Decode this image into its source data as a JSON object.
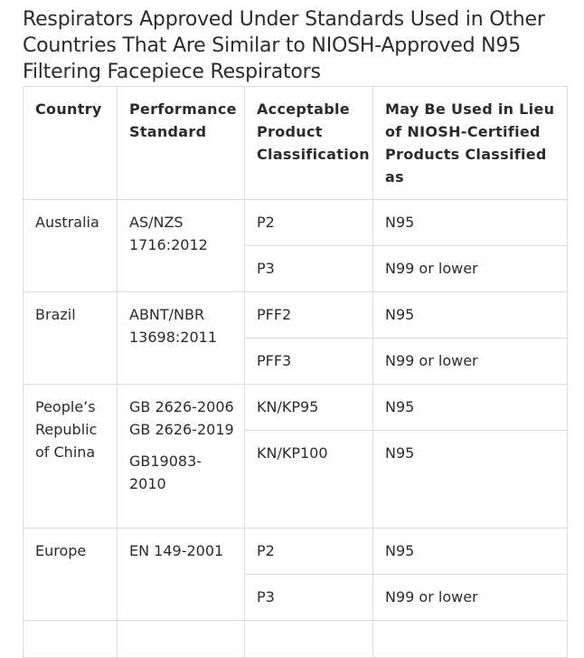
{
  "title": "Respirators Approved Under Standards Used in Other Countries That Are Similar to NIOSH-Approved N95 Filtering Facepiece Respirators",
  "table": {
    "headers": [
      "Country",
      "Performance Standard",
      "Acceptable Product Classification",
      "May Be Used in Lieu of NIOSH-Certified Products Classified as"
    ],
    "groups": [
      {
        "country": "Australia",
        "standards": [
          "AS/NZS 1716:2012"
        ],
        "rows": [
          {
            "classification": "P2",
            "equivalent": "N95"
          },
          {
            "classification": "P3",
            "equivalent": "N99 or lower"
          }
        ]
      },
      {
        "country": "Brazil",
        "standards": [
          "ABNT/NBR 13698:2011"
        ],
        "rows": [
          {
            "classification": "PFF2",
            "equivalent": "N95"
          },
          {
            "classification": "PFF3",
            "equivalent": "N99 or lower"
          }
        ]
      },
      {
        "country": "People’s Republic of China",
        "standards": [
          "GB 2626-2006",
          "GB 2626-2019",
          "GB19083-2010"
        ],
        "rows": [
          {
            "classification": "KN/KP95",
            "equivalent": "N95"
          },
          {
            "classification": "KN/KP100",
            "equivalent": "N95"
          }
        ]
      },
      {
        "country": "Europe",
        "standards": [
          "EN 149-2001"
        ],
        "rows": [
          {
            "classification": "P2",
            "equivalent": "N95"
          },
          {
            "classification": "P3",
            "equivalent": "N99 or lower"
          }
        ]
      }
    ]
  }
}
